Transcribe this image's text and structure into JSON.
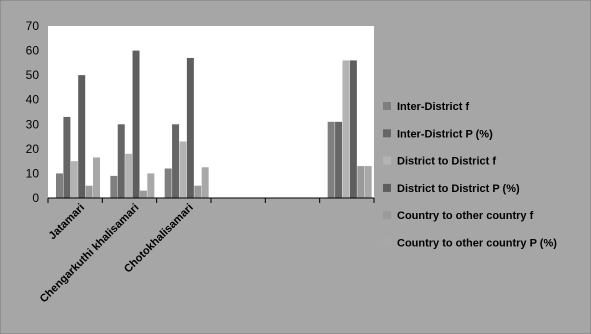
{
  "chart_data": {
    "type": "bar",
    "categories": [
      "Jatamari",
      "Chengarkuthi khalisamari",
      "Chotokhalisamari",
      "",
      "",
      ""
    ],
    "series": [
      {
        "name": "Inter-District f",
        "color": "#7f7f7f",
        "values": [
          10,
          9,
          12,
          null,
          null,
          31
        ]
      },
      {
        "name": "Inter-District P (%)",
        "color": "#666666",
        "values": [
          33,
          30,
          30,
          null,
          null,
          31
        ]
      },
      {
        "name": "District  to District f",
        "color": "#b3b3b3",
        "values": [
          15,
          18,
          23,
          null,
          null,
          56
        ]
      },
      {
        "name": "District  to District P (%)",
        "color": "#5e5e5e",
        "values": [
          50,
          60,
          57,
          null,
          null,
          56
        ]
      },
      {
        "name": "Country to other country f",
        "color": "#9a9a9a",
        "values": [
          5,
          3,
          5,
          null,
          null,
          13
        ]
      },
      {
        "name": "Country to other country P (%)",
        "color": "#a8a8a8",
        "values": [
          16.5,
          10,
          12.5,
          null,
          null,
          13
        ]
      }
    ],
    "ylim": [
      0,
      70
    ],
    "yticks": [
      0,
      10,
      20,
      30,
      40,
      50,
      60,
      70
    ],
    "legend_position": "right",
    "grid": false,
    "background_color": "#a6a6a6",
    "plot_area_color": "#ffffff"
  }
}
